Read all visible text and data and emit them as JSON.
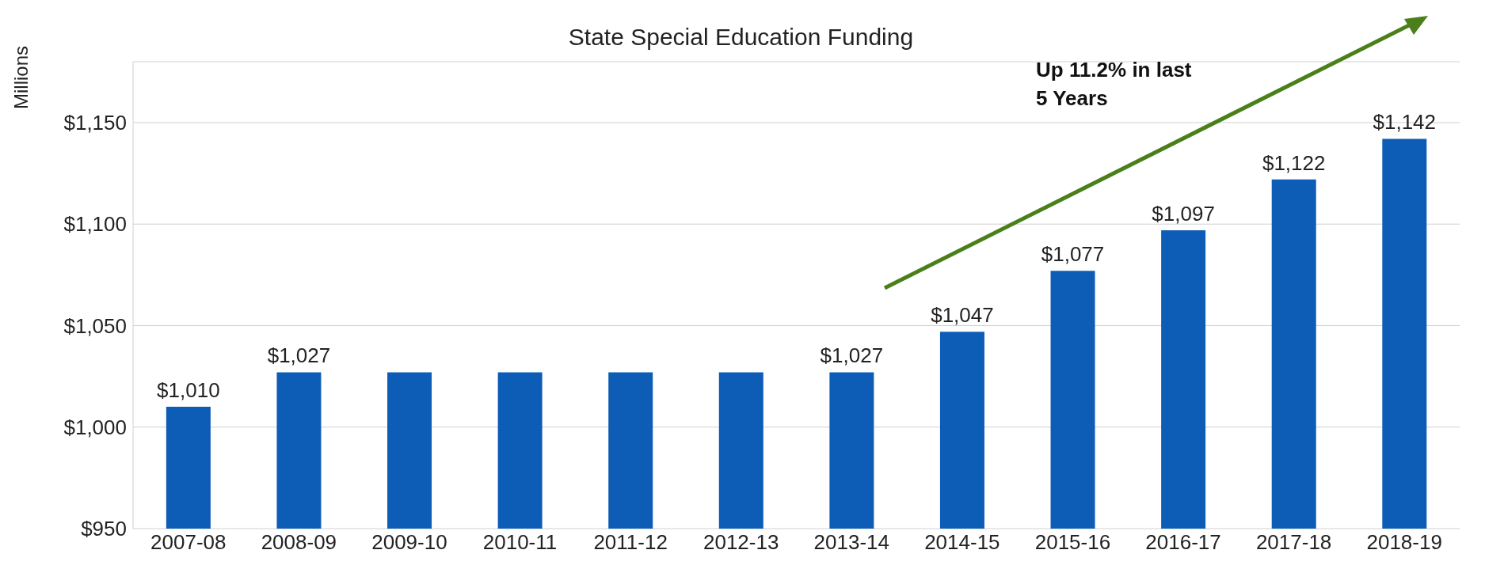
{
  "chart_data": {
    "type": "bar",
    "title": "State Special Education Funding",
    "ylabel": "Millions",
    "categories": [
      "2007-08",
      "2008-09",
      "2009-10",
      "2010-11",
      "2011-12",
      "2012-13",
      "2013-14",
      "2014-15",
      "2015-16",
      "2016-17",
      "2017-18",
      "2018-19"
    ],
    "values": [
      1010,
      1027,
      1027,
      1027,
      1027,
      1027,
      1027,
      1047,
      1077,
      1097,
      1122,
      1142
    ],
    "value_labels": [
      "$1,010",
      "$1,027",
      null,
      null,
      null,
      null,
      "$1,027",
      "$1,047",
      "$1,077",
      "$1,097",
      "$1,122",
      "$1,142"
    ],
    "color": "#0d5cb6",
    "ylim": [
      950,
      1180
    ],
    "yticks": [
      {
        "value": 950,
        "label": "$950"
      },
      {
        "value": 1000,
        "label": "$1,000"
      },
      {
        "value": 1050,
        "label": "$1,050"
      },
      {
        "value": 1100,
        "label": "$1,100"
      },
      {
        "value": 1150,
        "label": "$1,150"
      }
    ],
    "grid": "y",
    "annotations": [
      "Up 11.2% in last 5 Years"
    ]
  }
}
